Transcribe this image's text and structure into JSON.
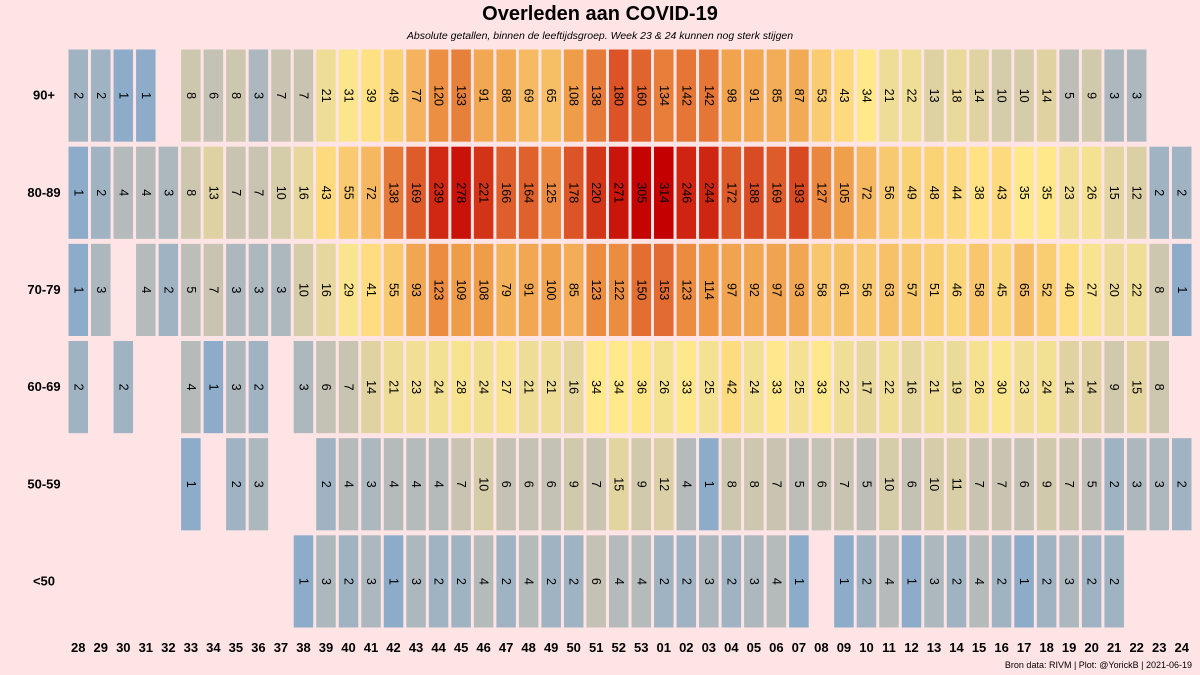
{
  "chart_data": {
    "type": "heatmap",
    "title": "Overleden aan COVID-19",
    "subtitle": "Absolute getallen, binnen de leeftijdsgroep. Week 23 & 24 kunnen nog sterk stijgen",
    "source": "Bron data: RIVM | Plot: @YorickB | 2021-06-19",
    "x_categories": [
      "28",
      "29",
      "30",
      "31",
      "32",
      "33",
      "34",
      "35",
      "36",
      "37",
      "38",
      "39",
      "40",
      "41",
      "42",
      "43",
      "44",
      "45",
      "46",
      "47",
      "48",
      "49",
      "50",
      "51",
      "52",
      "53",
      "01",
      "02",
      "03",
      "04",
      "05",
      "06",
      "07",
      "08",
      "09",
      "10",
      "11",
      "12",
      "13",
      "14",
      "15",
      "16",
      "17",
      "18",
      "19",
      "20",
      "21",
      "22",
      "23",
      "24"
    ],
    "y_categories": [
      "90+",
      "80-89",
      "70-79",
      "60-69",
      "50-59",
      "<50"
    ],
    "values": [
      [
        2,
        2,
        1,
        1,
        null,
        8,
        6,
        8,
        3,
        7,
        7,
        21,
        31,
        39,
        49,
        77,
        120,
        133,
        91,
        88,
        69,
        65,
        108,
        138,
        180,
        160,
        134,
        142,
        142,
        98,
        91,
        85,
        87,
        53,
        43,
        34,
        21,
        22,
        13,
        18,
        14,
        10,
        10,
        14,
        5,
        9,
        3,
        3,
        null,
        null
      ],
      [
        1,
        2,
        4,
        4,
        3,
        8,
        13,
        7,
        7,
        10,
        16,
        43,
        55,
        72,
        138,
        169,
        239,
        278,
        221,
        166,
        164,
        125,
        178,
        220,
        271,
        305,
        314,
        246,
        244,
        172,
        188,
        169,
        193,
        127,
        105,
        72,
        56,
        49,
        48,
        44,
        38,
        43,
        35,
        35,
        23,
        26,
        15,
        12,
        2,
        2
      ],
      [
        1,
        3,
        null,
        4,
        2,
        5,
        7,
        3,
        3,
        3,
        10,
        16,
        29,
        41,
        55,
        93,
        123,
        109,
        108,
        79,
        91,
        100,
        85,
        123,
        122,
        150,
        153,
        123,
        114,
        97,
        92,
        97,
        93,
        58,
        61,
        56,
        63,
        57,
        51,
        46,
        58,
        45,
        65,
        52,
        40,
        27,
        20,
        22,
        8,
        1
      ],
      [
        2,
        null,
        2,
        null,
        null,
        4,
        1,
        3,
        2,
        null,
        3,
        6,
        7,
        14,
        21,
        23,
        24,
        28,
        24,
        27,
        21,
        21,
        16,
        34,
        34,
        36,
        26,
        33,
        25,
        42,
        24,
        33,
        25,
        33,
        22,
        17,
        22,
        16,
        21,
        19,
        26,
        30,
        23,
        24,
        14,
        14,
        9,
        15,
        8,
        null
      ],
      [
        null,
        null,
        null,
        null,
        null,
        1,
        null,
        2,
        3,
        null,
        null,
        2,
        4,
        3,
        4,
        4,
        4,
        7,
        10,
        6,
        6,
        6,
        9,
        7,
        15,
        9,
        12,
        4,
        1,
        8,
        8,
        7,
        5,
        6,
        7,
        5,
        10,
        6,
        10,
        11,
        7,
        7,
        6,
        9,
        7,
        5,
        2,
        3,
        3,
        2
      ],
      [
        null,
        null,
        null,
        null,
        null,
        null,
        null,
        null,
        null,
        null,
        1,
        3,
        2,
        3,
        1,
        3,
        2,
        2,
        4,
        2,
        4,
        2,
        2,
        6,
        4,
        4,
        2,
        2,
        3,
        2,
        3,
        4,
        1,
        null,
        1,
        2,
        4,
        1,
        3,
        2,
        4,
        2,
        1,
        2,
        3,
        2,
        2,
        null,
        null,
        null
      ]
    ],
    "color_scale": {
      "low": "#6fa1d4",
      "mid": "#ffe98a",
      "high": "#c40000",
      "type": "log"
    },
    "row_max": [
      180,
      314,
      153,
      42,
      15,
      6
    ]
  }
}
